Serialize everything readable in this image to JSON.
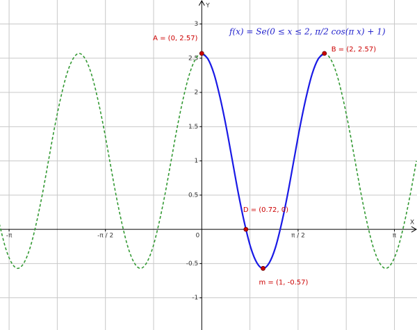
{
  "chart_data": {
    "type": "function-plot",
    "formula": "f(x) = Se(0 ≤ x ≤ 2, π/2 cos(π x) + 1)",
    "x_label": "X",
    "y_label": "Y",
    "xlim": [
      -3.29,
      3.51
    ],
    "ylim": [
      -1.47,
      3.35
    ],
    "xticks": [
      {
        "value": -3.1416,
        "label": "-π"
      },
      {
        "value": -1.5708,
        "label": "-π / 2"
      },
      0,
      {
        "value": 1.5708,
        "label": "π / 2"
      },
      {
        "value": 3.1416,
        "label": "π"
      }
    ],
    "yticks": [
      -1,
      -0.5,
      0.5,
      1,
      1.5,
      2,
      2.5,
      3
    ],
    "xgrid": [
      -3.1416,
      -2.3562,
      -1.5708,
      -0.7854,
      0.7854,
      1.5708,
      2.3562,
      3.1416
    ],
    "grid": true,
    "series": [
      {
        "color": "#339933",
        "dashed": true,
        "x": [
          -3.3,
          -3.2,
          -3.1,
          -3.0,
          -2.9,
          -2.8,
          -2.7,
          -2.6,
          -2.5,
          -2.4,
          -2.3,
          -2.2,
          -2.1,
          -2.0,
          -1.9,
          -1.8,
          -1.7,
          -1.6,
          -1.5,
          -1.4,
          -1.3,
          -1.2,
          -1.1,
          -1.0,
          -0.9,
          -0.8,
          -0.7,
          -0.6,
          -0.5,
          -0.4,
          -0.3,
          -0.2,
          -0.1,
          0,
          0.1,
          0.2,
          0.3,
          0.4,
          0.5,
          0.6,
          0.7,
          0.8,
          0.9,
          1.0,
          1.1,
          1.2,
          1.3,
          1.4,
          1.5,
          1.6,
          1.7,
          1.8,
          1.9,
          2.0,
          2.1,
          2.2,
          2.3,
          2.4,
          2.5,
          2.6,
          2.7,
          2.8,
          2.9,
          3.0,
          3.1,
          3.2,
          3.3,
          3.4,
          3.5
        ],
        "values": [
          0.08,
          -0.27,
          -0.49,
          -0.57,
          -0.49,
          -0.27,
          0.08,
          0.51,
          1,
          1.49,
          1.92,
          2.27,
          2.49,
          2.57,
          2.49,
          2.27,
          1.92,
          1.49,
          1,
          0.51,
          0.08,
          -0.27,
          -0.49,
          -0.57,
          -0.49,
          -0.27,
          0.08,
          0.51,
          1,
          1.49,
          1.92,
          2.27,
          2.49,
          2.57,
          2.49,
          2.27,
          1.92,
          1.49,
          1,
          0.51,
          0.08,
          -0.27,
          -0.49,
          -0.57,
          -0.49,
          -0.27,
          0.08,
          0.51,
          1,
          1.49,
          1.92,
          2.27,
          2.49,
          2.57,
          2.49,
          2.27,
          1.92,
          1.49,
          1,
          0.51,
          0.08,
          -0.27,
          -0.49,
          -0.57,
          -0.49,
          -0.27,
          0.08,
          0.51,
          1
        ]
      },
      {
        "color": "#1a1ae6",
        "dashed": false,
        "x": [
          0,
          0.1,
          0.2,
          0.3,
          0.4,
          0.5,
          0.6,
          0.7,
          0.8,
          0.9,
          1.0,
          1.1,
          1.2,
          1.3,
          1.4,
          1.5,
          1.6,
          1.7,
          1.8,
          1.9,
          2.0
        ],
        "values": [
          2.57,
          2.49,
          2.27,
          1.92,
          1.49,
          1,
          0.51,
          0.08,
          -0.27,
          -0.49,
          -0.57,
          -0.49,
          -0.27,
          0.08,
          0.51,
          1,
          1.49,
          1.92,
          2.27,
          2.49,
          2.57
        ]
      }
    ],
    "points": [
      {
        "label": "A = (0, 2.57)",
        "x": 0,
        "y": 2.57
      },
      {
        "label": "B = (2, 2.57)",
        "x": 2,
        "y": 2.57
      },
      {
        "label": "D = (0.72, 0)",
        "x": 0.72,
        "y": 0
      },
      {
        "label": "m = (1, -0.57)",
        "x": 1,
        "y": -0.57
      }
    ],
    "point_color": "#cc0000"
  }
}
